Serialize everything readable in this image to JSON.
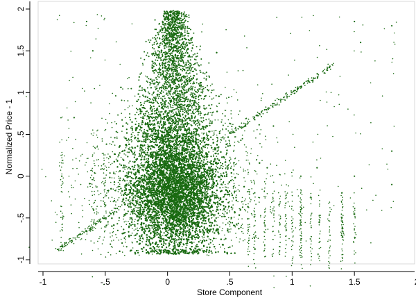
{
  "chart_data": {
    "type": "scatter",
    "title": "",
    "xlabel": "Store Component",
    "ylabel": "Normalized Price - 1",
    "xlim": [
      -1.07,
      2.0
    ],
    "ylim": [
      -1.03,
      2.0
    ],
    "x_ticks": [
      {
        "value": -1,
        "label": "-1"
      },
      {
        "value": -0.5,
        "label": "-.5"
      },
      {
        "value": 0,
        "label": "0"
      },
      {
        "value": 0.5,
        "label": ".5"
      },
      {
        "value": 1,
        "label": "1"
      },
      {
        "value": 1.5,
        "label": "1.5"
      },
      {
        "value": 2,
        "label": "2"
      }
    ],
    "y_ticks": [
      {
        "value": -1,
        "label": "-1"
      },
      {
        "value": -0.5,
        "label": "-.5"
      },
      {
        "value": 0,
        "label": "0"
      },
      {
        "value": 0.5,
        "label": ".5"
      },
      {
        "value": 1,
        "label": "1"
      },
      {
        "value": 1.5,
        "label": "1.5"
      },
      {
        "value": 2,
        "label": "2"
      }
    ],
    "grid": false,
    "legend": "none",
    "marker_color": "#1a6b12",
    "series": [
      {
        "points": [
          {
            "x": 0.05,
            "y": 0.0
          },
          {
            "x": 0.1,
            "y": -0.2
          },
          {
            "x": -0.1,
            "y": -0.3
          },
          {
            "x": 0.2,
            "y": -0.1
          },
          {
            "x": 0.0,
            "y": 0.5
          },
          {
            "x": 0.05,
            "y": 1.0
          },
          {
            "x": 0.05,
            "y": 1.5
          },
          {
            "x": 0.0,
            "y": 1.95
          },
          {
            "x": -0.3,
            "y": -0.5
          },
          {
            "x": 0.4,
            "y": 0.3
          },
          {
            "x": -0.85,
            "y": -0.84
          },
          {
            "x": -0.5,
            "y": -0.5
          },
          {
            "x": 0.55,
            "y": 0.55
          },
          {
            "x": 1.05,
            "y": 1.05
          },
          {
            "x": 1.3,
            "y": 1.3
          },
          {
            "x": 0.7,
            "y": -0.2
          },
          {
            "x": 0.8,
            "y": 0.1
          },
          {
            "x": 1.07,
            "y": 0.0
          },
          {
            "x": 1.07,
            "y": -0.4
          },
          {
            "x": 1.2,
            "y": 0.1
          },
          {
            "x": 1.4,
            "y": -0.2
          },
          {
            "x": 1.4,
            "y": -0.5
          },
          {
            "x": 1.5,
            "y": 0.0
          },
          {
            "x": 1.5,
            "y": 1.85
          },
          {
            "x": 1.8,
            "y": 1.8
          },
          {
            "x": 1.8,
            "y": 0.3
          },
          {
            "x": 1.8,
            "y": -0.1
          },
          {
            "x": -0.85,
            "y": 0.0
          },
          {
            "x": -0.75,
            "y": 0.7
          },
          {
            "x": -0.6,
            "y": 1.5
          },
          {
            "x": -0.65,
            "y": 1.85
          },
          {
            "x": 0.5,
            "y": -0.85
          },
          {
            "x": -0.2,
            "y": -0.9
          },
          {
            "x": 0.85,
            "y": 0.6
          },
          {
            "x": 1.55,
            "y": 1.6
          }
        ]
      }
    ]
  }
}
